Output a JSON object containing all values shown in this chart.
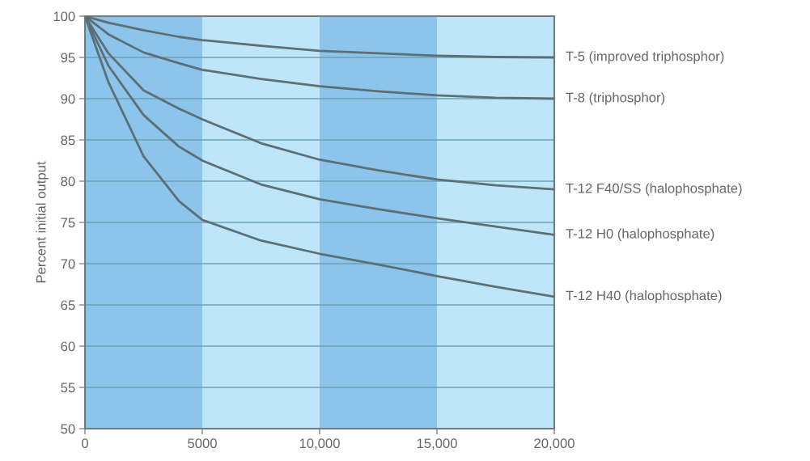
{
  "chart_data": {
    "type": "line",
    "ylabel": "Percent initial output",
    "x": [
      0,
      1000,
      2500,
      4000,
      5000,
      7500,
      10000,
      12500,
      15000,
      17500,
      20000
    ],
    "series": [
      {
        "name": "T-5 (improved triphosphor)",
        "color": "#5b6f74",
        "values": [
          100,
          99.2,
          98.3,
          97.5,
          97.1,
          96.4,
          95.8,
          95.5,
          95.2,
          95.05,
          95
        ]
      },
      {
        "name": "T-8 (triphosphor)",
        "color": "#5b6f74",
        "values": [
          100,
          97.8,
          95.6,
          94.3,
          93.5,
          92.4,
          91.5,
          90.9,
          90.4,
          90.1,
          90
        ]
      },
      {
        "name": "T-12 F40/SS (halophosphate)",
        "color": "#5b6f74",
        "values": [
          100,
          95.5,
          91,
          88.8,
          87.5,
          84.6,
          82.6,
          81.3,
          80.2,
          79.5,
          79
        ]
      },
      {
        "name": "T-12 H0 (halophosphate)",
        "color": "#5b6f74",
        "values": [
          100,
          94,
          88,
          84.2,
          82.5,
          79.6,
          77.8,
          76.6,
          75.5,
          74.5,
          73.5
        ]
      },
      {
        "name": "T-12 H40 (halophosphate)",
        "color": "#5b6f74",
        "values": [
          100,
          92,
          83,
          77.6,
          75.3,
          72.8,
          71.2,
          69.9,
          68.5,
          67.2,
          66
        ]
      }
    ],
    "xlim": [
      0,
      20000
    ],
    "ylim": [
      50,
      100
    ],
    "xticks": [
      0,
      5000,
      {
        "value": 10000,
        "label": "10,000"
      },
      {
        "value": 15000,
        "label": "15,000"
      },
      {
        "value": 20000,
        "label": "20,000"
      }
    ],
    "yticks": [
      50,
      55,
      60,
      65,
      70,
      75,
      80,
      85,
      90,
      95,
      100
    ],
    "grid": "y",
    "legend": false,
    "marker": "none",
    "line_style": "solid",
    "bands": [
      {
        "axis": "x",
        "from": 0,
        "to": 5000,
        "color": "#8cc4ec"
      },
      {
        "axis": "x",
        "from": 5000,
        "to": 10000,
        "color": "#bfe6f8"
      },
      {
        "axis": "x",
        "from": 10000,
        "to": 15000,
        "color": "#8cc4ec"
      },
      {
        "axis": "x",
        "from": 15000,
        "to": 20000,
        "color": "#bfe6f8"
      }
    ]
  }
}
